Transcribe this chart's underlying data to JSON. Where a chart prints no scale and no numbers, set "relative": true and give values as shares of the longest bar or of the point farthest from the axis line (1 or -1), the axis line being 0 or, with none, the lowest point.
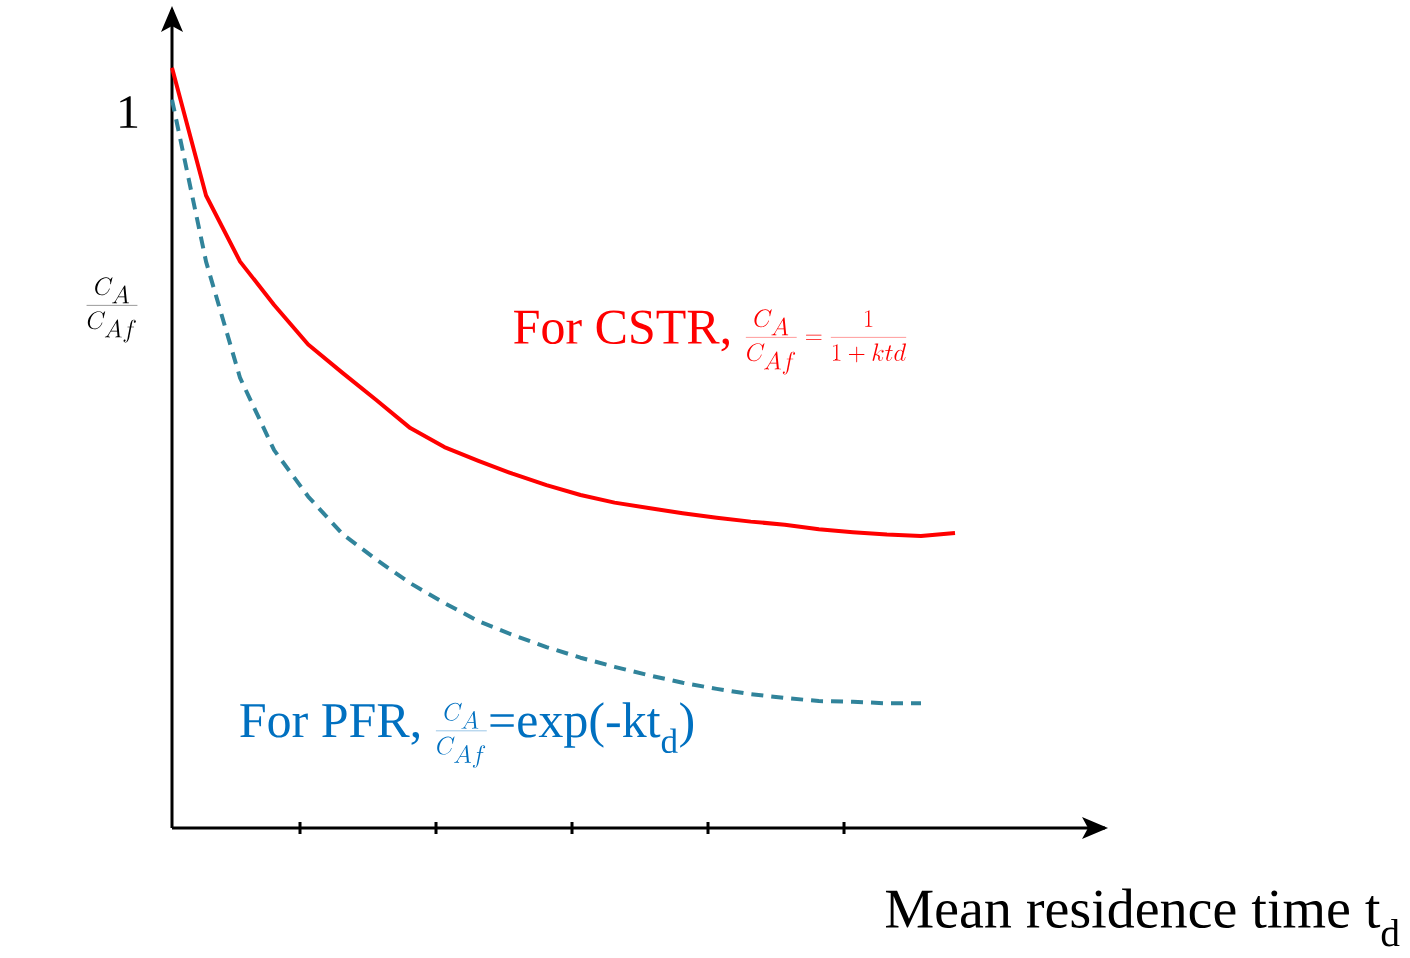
{
  "chart_data": {
    "type": "line",
    "relative": true,
    "xlabel": "Mean residence time t$_{d}$",
    "ylabel": "\\frac{C_A}{C_{Af}}",
    "categories": [
      null,
      null,
      null,
      null,
      null,
      null,
      null,
      null,
      null,
      null,
      null,
      null,
      null,
      null,
      null,
      null,
      null,
      null,
      null,
      null,
      null,
      null,
      null,
      null
    ],
    "marker": "none",
    "annotations": [
      "For CSTR, ",
      "\\frac{C_A}{C_{Af}} = \\frac{1}{1+ktd}",
      "For PFR, ",
      "\\frac{C_A}{C_{Af}}",
      "=exp(-kt$_{d}$)",
      "1"
    ],
    "series": [
      {
        "color": "#ff0000",
        "line_style": "solid",
        "values": [
          1.0,
          0.832,
          0.745,
          0.688,
          0.636,
          0.599,
          0.563,
          0.526,
          0.501,
          0.483,
          0.466,
          0.451,
          0.438,
          0.428,
          0.421,
          0.414,
          0.408,
          0.403,
          0.399,
          0.393,
          0.389,
          0.386,
          0.384,
          0.388
        ]
      },
      {
        "color": "#31849b",
        "line_style": "dashed",
        "values": [
          0.958,
          0.745,
          0.592,
          0.497,
          0.436,
          0.387,
          0.353,
          0.322,
          0.296,
          0.272,
          0.254,
          0.238,
          0.224,
          0.212,
          0.201,
          0.191,
          0.183,
          0.176,
          0.171,
          0.167,
          0.166,
          0.164,
          0.164,
          null
        ]
      }
    ]
  }
}
